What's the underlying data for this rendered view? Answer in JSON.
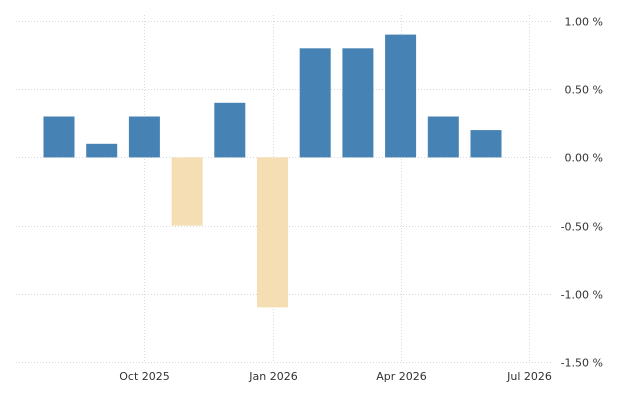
{
  "chart_data": {
    "type": "bar",
    "categories": [
      "Aug 2025",
      "Sep 2025",
      "Oct 2025",
      "Nov 2025",
      "Dec 2025",
      "Jan 2026",
      "Feb 2026",
      "Mar 2026",
      "Apr 2026",
      "May 2026",
      "Jun 2026"
    ],
    "values": [
      0.3,
      0.1,
      0.3,
      -0.5,
      0.4,
      -1.1,
      0.8,
      0.8,
      0.9,
      0.3,
      0.2
    ],
    "unit": "%",
    "title": "",
    "xlabel": "",
    "ylabel": "",
    "ylim": [
      -1.5,
      1.0
    ],
    "yticks": [
      1.0,
      0.5,
      0.0,
      -0.5,
      -1.0,
      -1.5
    ],
    "ytick_labels": [
      "1.00 %",
      "0.50 %",
      "0.00 %",
      "-0.50 %",
      "-1.00 %",
      "-1.50 %"
    ],
    "xtick_labels": [
      "Oct 2025",
      "Jan 2026",
      "Apr 2026",
      "Jul 2026"
    ],
    "xtick_positions": [
      2,
      5,
      8,
      11
    ],
    "y_axis_position": "right",
    "grid": true,
    "legend": "none",
    "colors": {
      "positive": "#4682b4",
      "negative": "#f5deb3"
    }
  }
}
